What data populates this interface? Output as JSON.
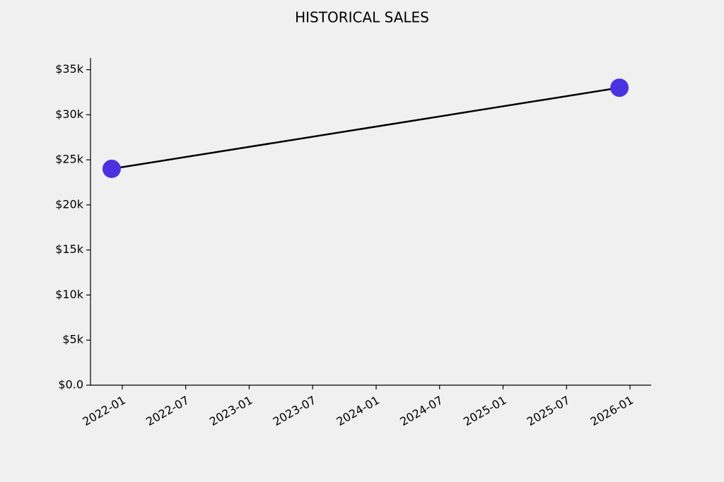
{
  "chart_data": {
    "type": "line",
    "title": "HISTORICAL SALES",
    "x": [
      "2021-12",
      "2025-12"
    ],
    "series": [
      {
        "values": [
          24000,
          33000
        ],
        "color": "#000000",
        "marker_color": "#4b32e0"
      }
    ],
    "xlim": [
      "2021-10",
      "2026-03"
    ],
    "xticks": [
      "2022-01",
      "2022-07",
      "2023-01",
      "2023-07",
      "2024-01",
      "2024-07",
      "2025-01",
      "2025-07",
      "2026-01"
    ],
    "ylim": [
      0,
      36300
    ],
    "yticks": [
      {
        "value": 0,
        "label": "$0.0"
      },
      {
        "value": 5000,
        "label": "$5k"
      },
      {
        "value": 10000,
        "label": "$10k"
      },
      {
        "value": 15000,
        "label": "$15k"
      },
      {
        "value": 20000,
        "label": "$20k"
      },
      {
        "value": 25000,
        "label": "$25k"
      },
      {
        "value": 30000,
        "label": "$30k"
      },
      {
        "value": 35000,
        "label": "$35k"
      }
    ],
    "grid": false
  }
}
